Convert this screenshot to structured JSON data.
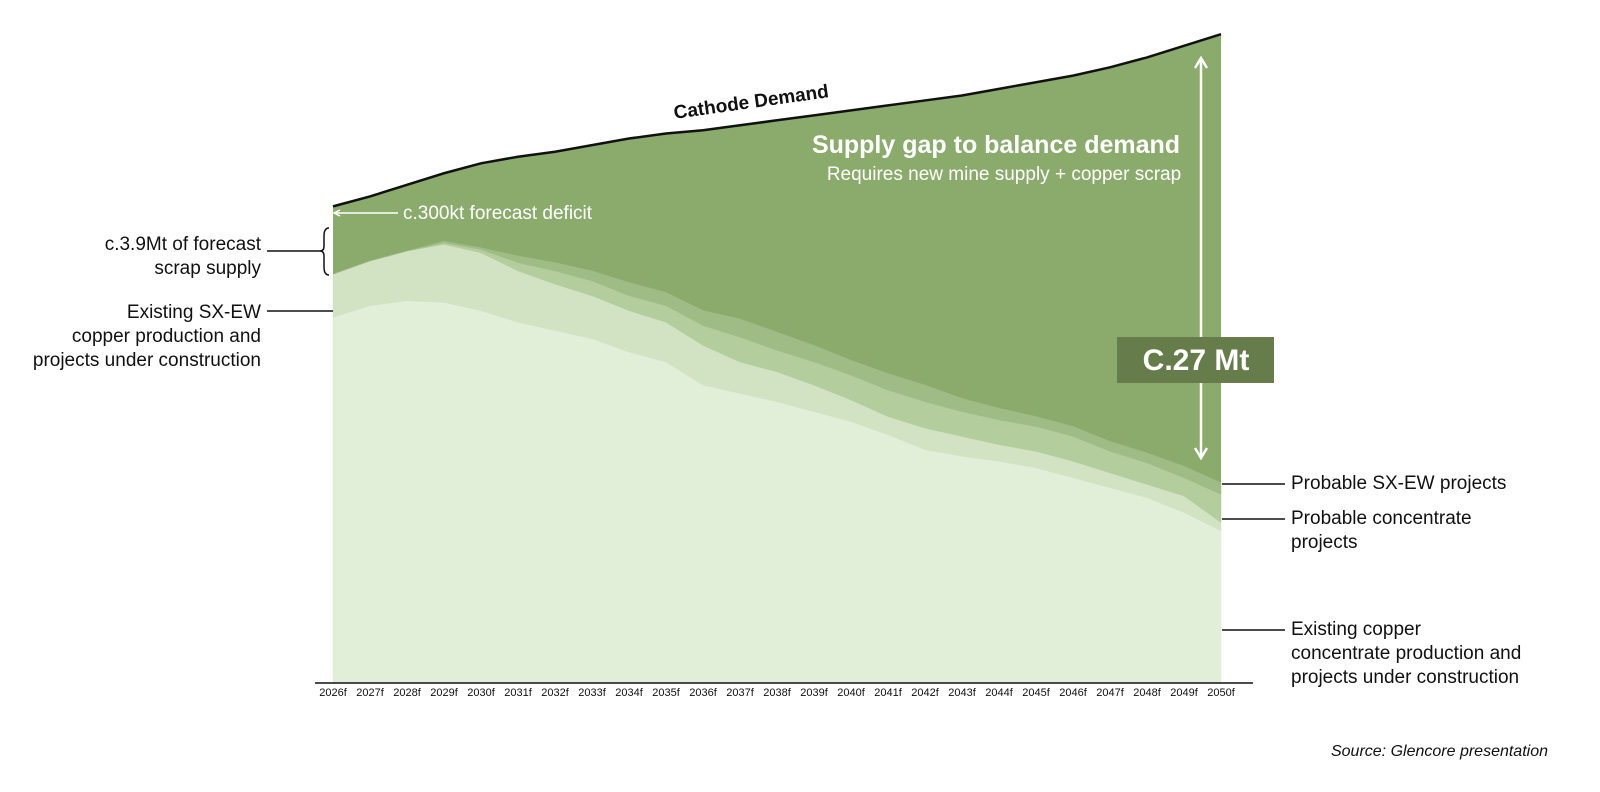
{
  "chart_data": {
    "type": "stacked_area",
    "categories": [
      "2026f",
      "2027f",
      "2028f",
      "2029f",
      "2030f",
      "2031f",
      "2032f",
      "2033f",
      "2034f",
      "2035f",
      "2036f",
      "2037f",
      "2038f",
      "2039f",
      "2040f",
      "2041f",
      "2042f",
      "2043f",
      "2044f",
      "2045f",
      "2046f",
      "2047f",
      "2048f",
      "2049f",
      "2050f"
    ],
    "ylim": [
      0,
      40
    ],
    "series": [
      {
        "name": "Existing copper\nconcentrate production and\nprojects under construction",
        "color": "#e1eed8",
        "values": [
          22.1,
          22.8,
          23.1,
          23.0,
          22.5,
          21.8,
          21.3,
          20.8,
          20.0,
          19.4,
          18.0,
          17.5,
          17.0,
          16.4,
          15.8,
          15.0,
          14.1,
          13.7,
          13.4,
          13.0,
          12.4,
          11.8,
          11.2,
          10.3,
          9.2
        ]
      },
      {
        "name": "Existing SX-EW\ncopper production and\nprojects under construction",
        "color": "#d2e3c4",
        "values": [
          2.6,
          2.7,
          3.0,
          3.5,
          3.5,
          3.1,
          2.8,
          2.6,
          2.5,
          2.4,
          2.4,
          1.9,
          1.8,
          1.6,
          1.3,
          1.1,
          1.3,
          1.2,
          1.0,
          1.0,
          1.0,
          0.9,
          0.8,
          1.0,
          0.5
        ]
      },
      {
        "name": "Probable concentrate\nprojects",
        "color": "#b3cd9c",
        "values": [
          0,
          0,
          0,
          0.1,
          0.2,
          0.5,
          0.8,
          0.9,
          0.9,
          1.0,
          1.2,
          1.5,
          1.3,
          1.4,
          1.5,
          1.6,
          1.6,
          1.5,
          1.5,
          1.5,
          1.5,
          1.3,
          1.3,
          1.1,
          1.7
        ]
      },
      {
        "name": "Probable SX-EW projects",
        "color": "#9fbc87",
        "values": [
          0,
          0,
          0,
          0.1,
          0.1,
          0.4,
          0.5,
          0.6,
          0.8,
          0.8,
          0.9,
          1.1,
          1.1,
          1.0,
          0.9,
          1.0,
          1.0,
          0.8,
          0.7,
          0.6,
          0.6,
          0.6,
          0.6,
          0.7,
          0.7
        ]
      }
    ],
    "demand": {
      "name": "Cathode Demand",
      "color": "#8aab6c",
      "line_color": "#111111",
      "values": [
        28.8,
        29.4,
        30.1,
        30.8,
        31.4,
        31.8,
        32.1,
        32.5,
        32.9,
        33.2,
        33.4,
        33.7,
        34.0,
        34.3,
        34.6,
        34.9,
        35.2,
        35.5,
        35.9,
        36.3,
        36.7,
        37.2,
        37.8,
        38.5,
        39.2
      ]
    },
    "annotations": {
      "gap_title": "Supply gap to balance demand",
      "gap_subtitle": "Requires new mine supply + copper scrap",
      "gap_value": "C.27 Mt",
      "deficit": "c.300kt forecast deficit",
      "scrap": "c.3.9Mt of forecast\nscrap supply"
    },
    "source": "Source: Glencore presentation"
  }
}
